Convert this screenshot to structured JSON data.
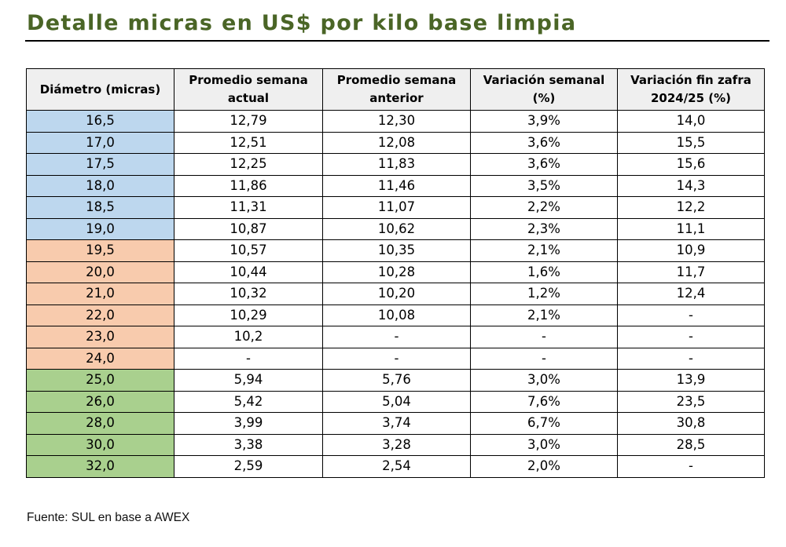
{
  "title": "Detalle micras en US$ por kilo base limpia",
  "colors": {
    "title": "#4a6526",
    "fine": "#bdd7ee",
    "medium": "#f8cbad",
    "coarse": "#a9d08e",
    "header_bg": "#efefef"
  },
  "table": {
    "headers": [
      "Diámetro (micras)",
      "Promedio semana actual",
      "Promedio semana anterior",
      "Variación semanal (%)",
      "Variación fin zafra 2024/25 (%)"
    ],
    "rows": [
      {
        "group": "fine",
        "cells": [
          "16,5",
          "12,79",
          "12,30",
          "3,9%",
          "14,0"
        ]
      },
      {
        "group": "fine",
        "cells": [
          "17,0",
          "12,51",
          "12,08",
          "3,6%",
          "15,5"
        ]
      },
      {
        "group": "fine",
        "cells": [
          "17,5",
          "12,25",
          "11,83",
          "3,6%",
          "15,6"
        ]
      },
      {
        "group": "fine",
        "cells": [
          "18,0",
          "11,86",
          "11,46",
          "3,5%",
          "14,3"
        ]
      },
      {
        "group": "fine",
        "cells": [
          "18,5",
          "11,31",
          "11,07",
          "2,2%",
          "12,2"
        ]
      },
      {
        "group": "fine",
        "cells": [
          "19,0",
          "10,87",
          "10,62",
          "2,3%",
          "11,1"
        ]
      },
      {
        "group": "medium",
        "cells": [
          "19,5",
          "10,57",
          "10,35",
          "2,1%",
          "10,9"
        ]
      },
      {
        "group": "medium",
        "cells": [
          "20,0",
          "10,44",
          "10,28",
          "1,6%",
          "11,7"
        ]
      },
      {
        "group": "medium",
        "cells": [
          "21,0",
          "10,32",
          "10,20",
          "1,2%",
          "12,4"
        ]
      },
      {
        "group": "medium",
        "cells": [
          "22,0",
          "10,29",
          "10,08",
          "2,1%",
          "-"
        ]
      },
      {
        "group": "medium",
        "cells": [
          "23,0",
          "10,2",
          "-",
          "-",
          "-"
        ]
      },
      {
        "group": "medium",
        "cells": [
          "24,0",
          "-",
          "-",
          "-",
          "-"
        ]
      },
      {
        "group": "coarse",
        "cells": [
          "25,0",
          "5,94",
          "5,76",
          "3,0%",
          "13,9"
        ]
      },
      {
        "group": "coarse",
        "cells": [
          "26,0",
          "5,42",
          "5,04",
          "7,6%",
          "23,5"
        ]
      },
      {
        "group": "coarse",
        "cells": [
          "28,0",
          "3,99",
          "3,74",
          "6,7%",
          "30,8"
        ]
      },
      {
        "group": "coarse",
        "cells": [
          "30,0",
          "3,38",
          "3,28",
          "3,0%",
          "28,5"
        ]
      },
      {
        "group": "coarse",
        "cells": [
          "32,0",
          "2,59",
          "2,54",
          "2,0%",
          "-"
        ]
      }
    ]
  },
  "source": "Fuente: SUL en base a AWEX"
}
